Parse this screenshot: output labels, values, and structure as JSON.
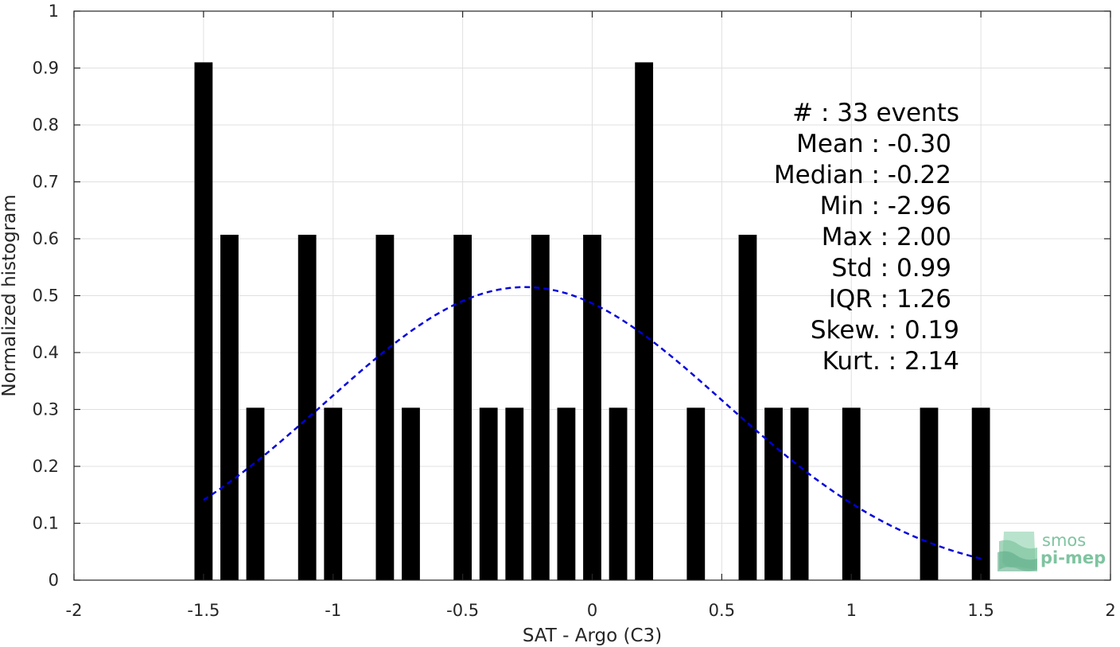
{
  "chart_data": {
    "type": "bar",
    "xlabel": "SAT - Argo (C3)",
    "ylabel": "Normalized histogram",
    "xlim": [
      -2,
      2
    ],
    "ylim": [
      0,
      1
    ],
    "grid": true,
    "x_ticks": [
      -2,
      -1.5,
      -1,
      -0.5,
      0,
      0.5,
      1,
      1.5,
      2
    ],
    "x_tick_labels": [
      "-2",
      "-1.5",
      "-1",
      "-0.5",
      "0",
      "0.5",
      "1",
      "1.5",
      "2"
    ],
    "y_ticks": [
      0,
      0.1,
      0.2,
      0.3,
      0.4,
      0.5,
      0.6,
      0.7,
      0.8,
      0.9,
      1
    ],
    "y_tick_labels": [
      "0",
      "0.1",
      "0.2",
      "0.3",
      "0.4",
      "0.5",
      "0.6",
      "0.7",
      "0.8",
      "0.9",
      "1"
    ],
    "bar_width": 0.07,
    "bar_color": "#000000",
    "bars": [
      {
        "x": -1.5,
        "y": 0.91
      },
      {
        "x": -1.4,
        "y": 0.607
      },
      {
        "x": -1.3,
        "y": 0.303
      },
      {
        "x": -1.1,
        "y": 0.607
      },
      {
        "x": -1.0,
        "y": 0.303
      },
      {
        "x": -0.8,
        "y": 0.607
      },
      {
        "x": -0.7,
        "y": 0.303
      },
      {
        "x": -0.5,
        "y": 0.607
      },
      {
        "x": -0.4,
        "y": 0.303
      },
      {
        "x": -0.3,
        "y": 0.303
      },
      {
        "x": -0.2,
        "y": 0.607
      },
      {
        "x": -0.1,
        "y": 0.303
      },
      {
        "x": 0.0,
        "y": 0.607
      },
      {
        "x": 0.1,
        "y": 0.303
      },
      {
        "x": 0.2,
        "y": 0.91
      },
      {
        "x": 0.4,
        "y": 0.303
      },
      {
        "x": 0.6,
        "y": 0.607
      },
      {
        "x": 0.7,
        "y": 0.303
      },
      {
        "x": 0.8,
        "y": 0.303
      },
      {
        "x": 1.0,
        "y": 0.303
      },
      {
        "x": 1.3,
        "y": 0.303
      },
      {
        "x": 1.5,
        "y": 0.303
      }
    ],
    "fit_curve": {
      "type": "normal",
      "mean": -0.26,
      "std": 0.77,
      "peak": 0.515,
      "x_range": [
        -1.5,
        1.5
      ],
      "color": "#0000dd",
      "style": "dashed"
    },
    "annotations": [
      "#  : 33 events",
      "Mean : -0.30",
      "Median : -0.22",
      "Min : -2.96",
      "Max : 2.00",
      "Std : 0.99",
      "IQR : 1.26",
      "Skew. : 0.19",
      "Kurt. : 2.14"
    ]
  },
  "logo": {
    "line1": "smos",
    "line2": "pi-mep",
    "color": "#7fc4a0"
  }
}
